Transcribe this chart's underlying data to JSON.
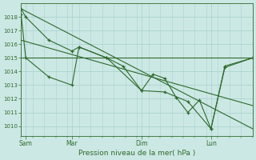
{
  "bg_color": "#cce8e4",
  "grid_color": "#aad4ce",
  "line_color": "#2d6a2d",
  "marker_color": "#2d6a2d",
  "xlabel_text": "Pression niveau de la mer( hPa )",
  "ylim": [
    1009.3,
    1019.0
  ],
  "yticks": [
    1010,
    1011,
    1012,
    1013,
    1014,
    1015,
    1016,
    1017,
    1018
  ],
  "hline_y": 1015.0,
  "xlim": [
    0,
    100
  ],
  "xtick_positions": [
    2,
    22,
    52,
    82
  ],
  "xtick_labels": [
    "Sam",
    "Mar",
    "Dim",
    "Lun"
  ],
  "series1_x": [
    0,
    2,
    12,
    22,
    25,
    37,
    52,
    62,
    72,
    82,
    88,
    100
  ],
  "series1_y": [
    1018.6,
    1018.0,
    1016.3,
    1015.5,
    1015.8,
    1015.0,
    1012.6,
    1012.5,
    1011.8,
    1009.8,
    1014.3,
    1015.0
  ],
  "series2_x": [
    0,
    2,
    12,
    22,
    25,
    37,
    44,
    52,
    57,
    62,
    67,
    72,
    77,
    82,
    88,
    100
  ],
  "series2_y": [
    1018.2,
    1015.0,
    1013.6,
    1013.0,
    1015.8,
    1015.0,
    1014.4,
    1012.6,
    1013.8,
    1013.5,
    1012.1,
    1011.0,
    1011.9,
    1009.8,
    1014.4,
    1015.0
  ],
  "trend1_x": [
    0,
    100
  ],
  "trend1_y": [
    1018.6,
    1009.8
  ],
  "trend2_x": [
    0,
    100
  ],
  "trend2_y": [
    1016.3,
    1011.5
  ],
  "ytick_fontsize": 5.0,
  "xtick_fontsize": 5.5,
  "xlabel_fontsize": 6.5
}
